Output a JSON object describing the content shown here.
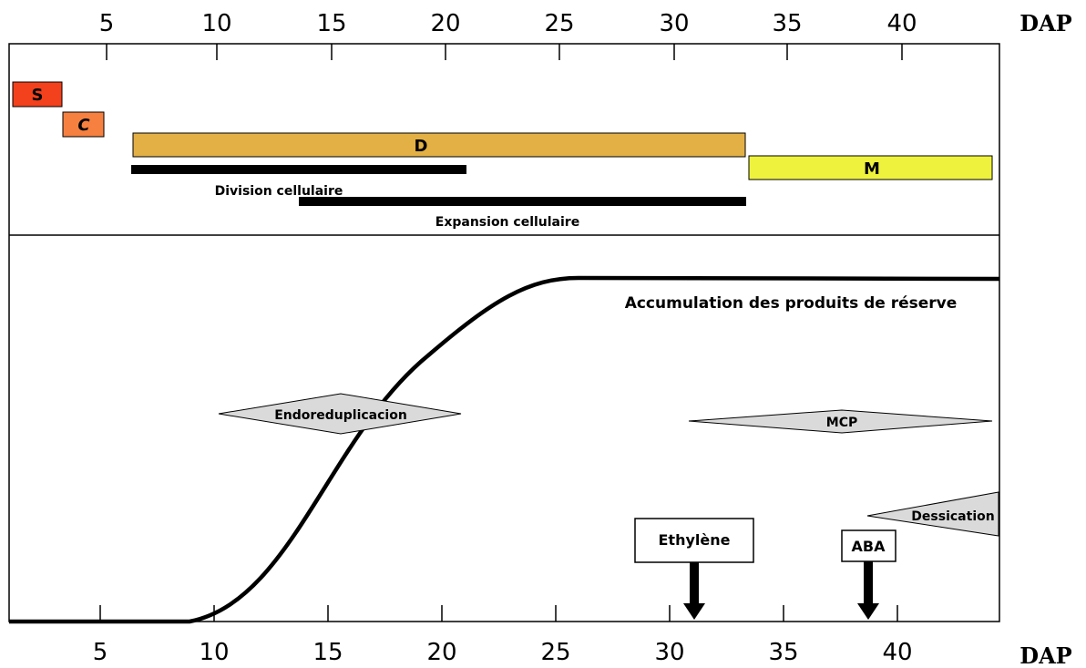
{
  "axis": {
    "unit_label": "DAP",
    "ticks": [
      "5",
      "10",
      "15",
      "20",
      "25",
      "30",
      "35",
      "40"
    ]
  },
  "phases": {
    "S": {
      "label": "S",
      "color": "#f2411c"
    },
    "C": {
      "label": "C",
      "color": "#f58040"
    },
    "D": {
      "label": "D",
      "color": "#e2b045"
    },
    "M": {
      "label": "M",
      "color": "#eef23c"
    }
  },
  "processes": {
    "division": "Division cellulaire",
    "expansion": "Expansion cellulaire"
  },
  "curve_label": "Accumulation des produits de réserve",
  "events": {
    "endoreduplication": "Endoreduplicacion",
    "mcp": "MCP",
    "dessication": "Dessication",
    "ethylene": "Ethylène",
    "aba": "ABA"
  },
  "colors": {
    "shape_fill": "#dadada",
    "line": "#000000"
  }
}
